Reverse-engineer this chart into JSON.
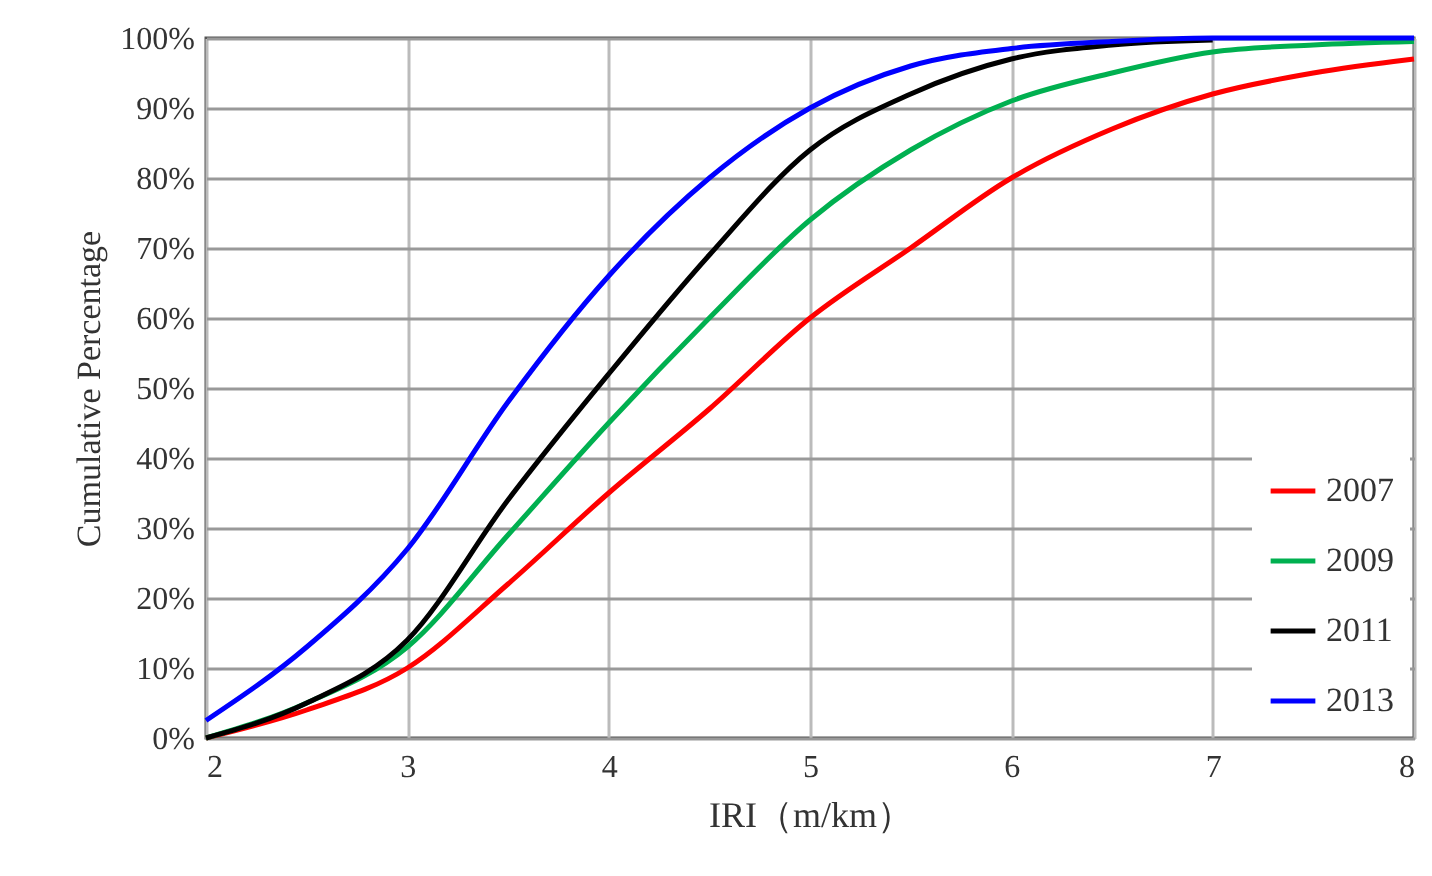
{
  "chart_data": {
    "type": "line",
    "xlabel": "IRI（m/km）",
    "ylabel": "Cumulative Percentage",
    "x": [
      2,
      2.5,
      3,
      3.5,
      4,
      4.5,
      5,
      5.5,
      6,
      6.5,
      7,
      7.5,
      8
    ],
    "series": [
      {
        "name": "2007",
        "color": "#ff0000",
        "values": [
          0,
          4,
          10,
          22,
          35,
          47,
          60,
          70,
          80,
          87,
          92,
          95,
          97
        ]
      },
      {
        "name": "2009",
        "color": "#00b050",
        "values": [
          0,
          5,
          13,
          29,
          45,
          60,
          74,
          84,
          91,
          95,
          98,
          99,
          99.5
        ]
      },
      {
        "name": "2011",
        "color": "#000000",
        "values": [
          0,
          5,
          14,
          34,
          52,
          69,
          84,
          92,
          97,
          99,
          99.7,
          null,
          null
        ]
      },
      {
        "name": "2013",
        "color": "#0000ff",
        "values": [
          2.5,
          13,
          27,
          48,
          66,
          80,
          90,
          96,
          98.5,
          99.5,
          100,
          100,
          100
        ]
      }
    ],
    "xlim": [
      2,
      8
    ],
    "xticks": [
      2,
      3,
      4,
      5,
      6,
      7,
      8
    ],
    "ylim": [
      0,
      100
    ],
    "yticks": [
      {
        "value": 0,
        "label": "0%"
      },
      {
        "value": 10,
        "label": "10%"
      },
      {
        "value": 20,
        "label": "20%"
      },
      {
        "value": 30,
        "label": "30%"
      },
      {
        "value": 40,
        "label": "40%"
      },
      {
        "value": 50,
        "label": "50%"
      },
      {
        "value": 60,
        "label": "60%"
      },
      {
        "value": 70,
        "label": "70%"
      },
      {
        "value": 80,
        "label": "80%"
      },
      {
        "value": 90,
        "label": "90%"
      },
      {
        "value": 100,
        "label": "100%"
      }
    ],
    "grid": true,
    "legend": "bottom right",
    "marker": "none",
    "line_style": "solid"
  }
}
